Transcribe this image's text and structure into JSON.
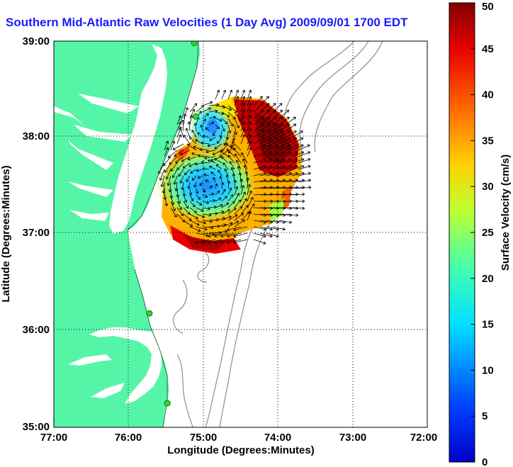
{
  "title": "Southern Mid-Atlantic Raw Velocities (1 Day Avg) 2009/09/01 1700 EDT",
  "x_axis": {
    "label": "Longitude (Degrees:Minutes)",
    "ticks": [
      {
        "value": -77,
        "label": "77:00"
      },
      {
        "value": -76,
        "label": "76:00"
      },
      {
        "value": -75,
        "label": "75:00"
      },
      {
        "value": -74,
        "label": "74:00"
      },
      {
        "value": -73,
        "label": "73:00"
      },
      {
        "value": -72,
        "label": "72:00"
      }
    ],
    "range": [
      -77,
      -72
    ]
  },
  "y_axis": {
    "label": "Latitude (Degrees:Minutes)",
    "ticks": [
      {
        "value": 39,
        "label": "39:00"
      },
      {
        "value": 38,
        "label": "38:00"
      },
      {
        "value": 37,
        "label": "37:00"
      },
      {
        "value": 36,
        "label": "36:00"
      },
      {
        "value": 35,
        "label": "35:00"
      }
    ],
    "range": [
      35,
      39
    ]
  },
  "grid": "dotted",
  "colorbar": {
    "label": "Surface Velocity (cm/s)",
    "min": 0,
    "max": 50,
    "ticks": [
      {
        "value": 0,
        "label": "0"
      },
      {
        "value": 5,
        "label": "5"
      },
      {
        "value": 10,
        "label": "10"
      },
      {
        "value": 15,
        "label": "15"
      },
      {
        "value": 20,
        "label": "20"
      },
      {
        "value": 25,
        "label": "25"
      },
      {
        "value": 30,
        "label": "30"
      },
      {
        "value": 35,
        "label": "35"
      },
      {
        "value": 40,
        "label": "40"
      },
      {
        "value": 45,
        "label": "45"
      },
      {
        "value": 50,
        "label": "50"
      }
    ],
    "colormap": "jet"
  },
  "colors": {
    "land": "#55f5a8",
    "water": "#ffffff",
    "bathymetry": "#8c8c8c",
    "station": "#2fd62f",
    "title": "#1a1aff"
  },
  "stations": [
    {
      "lon": -75.12,
      "lat": 38.98
    },
    {
      "lon": -75.1,
      "lat": 38.22
    },
    {
      "lon": -75.72,
      "lat": 36.18
    },
    {
      "lon": -75.48,
      "lat": 35.25
    }
  ]
}
